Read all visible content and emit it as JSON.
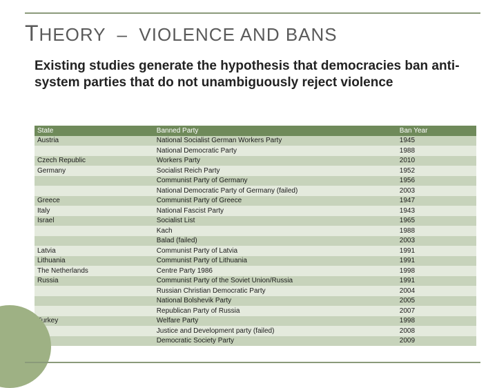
{
  "title_html": "<span class='big'>T</span>HEORY &nbsp;–&nbsp; VIOLENCE AND BANS",
  "hypothesis": "Existing studies generate the hypothesis that democracies ban anti-system parties that do not unambiguously reject violence",
  "table": {
    "columns": [
      "State",
      "Banned Party",
      "Ban Year"
    ],
    "rows": [
      [
        "Austria",
        "National Socialist German Workers Party",
        "1945"
      ],
      [
        "",
        "National Democratic Party",
        "1988"
      ],
      [
        "Czech Republic",
        "Workers Party",
        "2010"
      ],
      [
        "Germany",
        "Socialist Reich Party",
        "1952"
      ],
      [
        "",
        "Communist Party of Germany",
        "1956"
      ],
      [
        "",
        "National Democratic Party of Germany (failed)",
        "2003"
      ],
      [
        "Greece",
        "Communist Party of Greece",
        "1947"
      ],
      [
        "Italy",
        "National Fascist Party",
        "1943"
      ],
      [
        "Israel",
        "Socialist List",
        "1965"
      ],
      [
        "",
        "Kach",
        "1988"
      ],
      [
        "",
        "Balad (failed)",
        "2003"
      ],
      [
        "Latvia",
        "Communist Party of Latvia",
        "1991"
      ],
      [
        "Lithuania",
        "Communist Party of Lithuania",
        "1991"
      ],
      [
        "The Netherlands",
        "Centre Party 1986",
        "1998"
      ],
      [
        "Russia",
        "Communist Party of the Soviet Union/Russia",
        "1991"
      ],
      [
        "",
        "Russian Christian Democratic Party",
        "2004"
      ],
      [
        "",
        "National Bolshevik Party",
        "2005"
      ],
      [
        "",
        "Republican Party of Russia",
        "2007"
      ],
      [
        "Turkey",
        "Welfare Party",
        "1998"
      ],
      [
        "",
        "Justice and Development party (failed)",
        "2008"
      ],
      [
        "",
        "Democratic Society Party",
        "2009"
      ]
    ],
    "header_bg": "#6f8a5a",
    "row_odd_bg": "#c7d3bb",
    "row_even_bg": "#e4eadd"
  }
}
